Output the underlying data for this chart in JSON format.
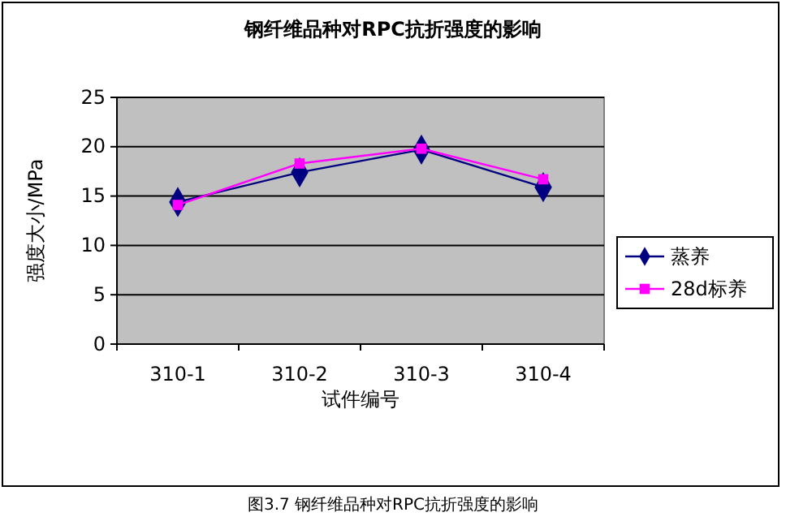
{
  "chart_data": {
    "type": "line",
    "title": "钢纤维品种对RPC抗折强度的影响",
    "xlabel": "试件编号",
    "ylabel": "强度大小/MPa",
    "categories": [
      "310-1",
      "310-2",
      "310-3",
      "310-4"
    ],
    "series": [
      {
        "name": "蒸养",
        "color": "#000080",
        "values": [
          14.4,
          17.4,
          19.7,
          15.9
        ],
        "marker": "diamond"
      },
      {
        "name": "28d标养",
        "color": "#ff00ff",
        "values": [
          14.1,
          18.3,
          19.8,
          16.7
        ],
        "marker": "square"
      }
    ],
    "ylim": [
      0,
      25
    ],
    "yticks": [
      0,
      5,
      10,
      15,
      20,
      25
    ],
    "grid": "y",
    "legend": "right",
    "annotations": [
      "图3.7   钢纤维品种对RPC抗折强度的影响"
    ]
  }
}
